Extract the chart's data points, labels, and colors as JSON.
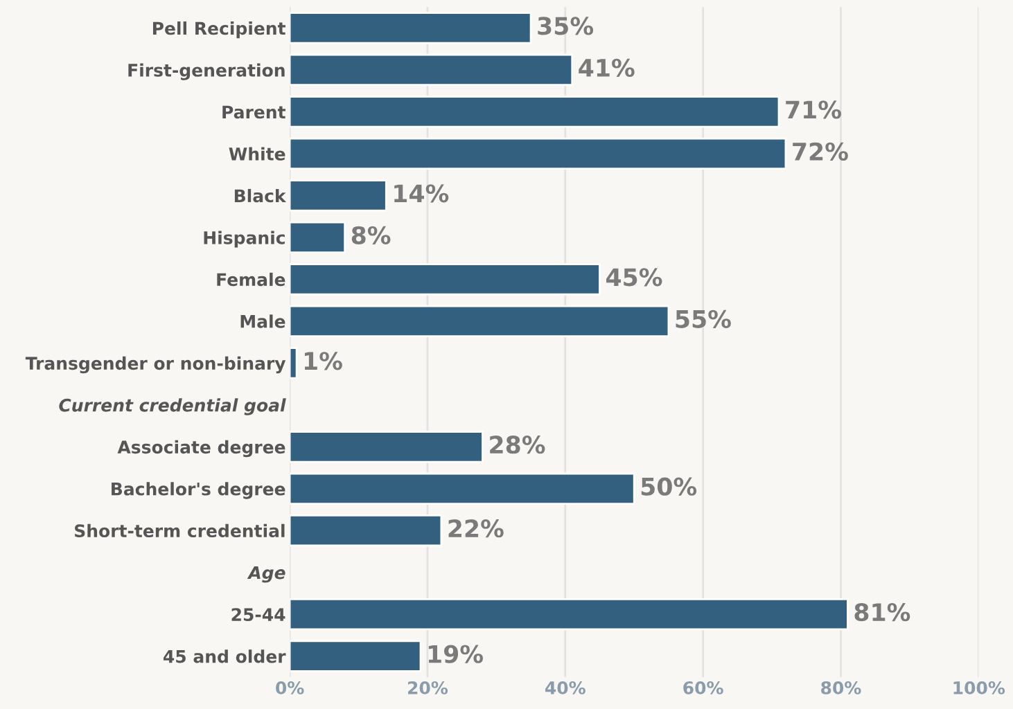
{
  "chart_data": {
    "type": "bar",
    "orientation": "horizontal",
    "categories": [
      "Pell Recipient",
      "First-generation",
      "Parent",
      "White",
      "Black",
      "Hispanic",
      "Female",
      "Male",
      "Transgender or non-binary",
      "Current credential goal",
      "Associate degree",
      "Bachelor's degree",
      "Short-term credential",
      "Age",
      "25-44",
      "45 and older"
    ],
    "values": [
      35,
      41,
      71,
      72,
      14,
      8,
      45,
      55,
      1,
      null,
      28,
      50,
      22,
      null,
      81,
      19
    ],
    "value_labels": [
      "35%",
      "41%",
      "71%",
      "72%",
      "14%",
      "8%",
      "45%",
      "55%",
      "1%",
      null,
      "28%",
      "50%",
      "22%",
      null,
      "81%",
      "19%"
    ],
    "color": "#33607f",
    "xlim": [
      0,
      100
    ],
    "xticks": [
      {
        "value": 0,
        "label": "0%"
      },
      {
        "value": 20,
        "label": "20%"
      },
      {
        "value": 40,
        "label": "40%"
      },
      {
        "value": 60,
        "label": "60%"
      },
      {
        "value": 80,
        "label": "80%"
      },
      {
        "value": 100,
        "label": "100%"
      }
    ],
    "grid": "x"
  }
}
